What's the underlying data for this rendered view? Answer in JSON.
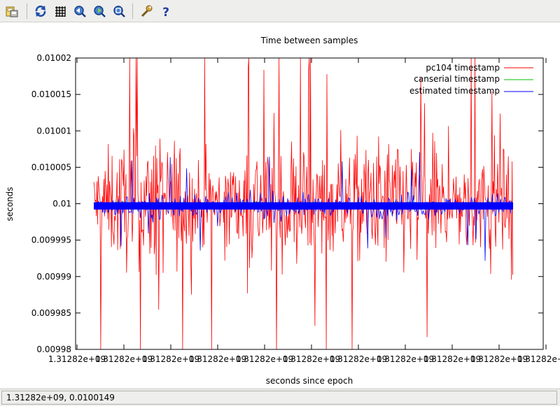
{
  "toolbar": {
    "buttons": [
      {
        "name": "export-icon",
        "tooltip": ""
      },
      {
        "name": "replot-icon",
        "tooltip": ""
      },
      {
        "name": "grid-icon",
        "tooltip": ""
      },
      {
        "name": "zoom-previous-icon",
        "tooltip": ""
      },
      {
        "name": "zoom-next-icon",
        "tooltip": ""
      },
      {
        "name": "autoscale-icon",
        "tooltip": ""
      },
      {
        "name": "config-icon",
        "tooltip": ""
      },
      {
        "name": "help-icon",
        "tooltip": ""
      }
    ]
  },
  "status": {
    "coordinates": "1.31282e+09,  0.0100149"
  },
  "colors": {
    "pc104": "#ff0000",
    "canserial": "#00c000",
    "estimated": "#0000ff"
  },
  "chart_data": {
    "type": "line",
    "title": "Time between samples",
    "xlabel": "seconds since epoch",
    "ylabel": "seconds",
    "ylim": [
      0.00998,
      0.01002
    ],
    "yticks": [
      0.00998,
      0.009985,
      0.00999,
      0.009995,
      0.01,
      0.010005,
      0.01001,
      0.010015,
      0.01002
    ],
    "ytick_labels": [
      "0.00998",
      "0.009985",
      "0.00999",
      "0.009995",
      "0.01",
      "0.010005",
      "0.01001",
      "0.010015",
      "0.01002"
    ],
    "xtick_labels": [
      "1.31282e+09",
      "1.31282e+09",
      "1.31282e+09",
      "1.31282e+09",
      "1.31282e+09",
      "1.31282e+09",
      "1.31282e+09",
      "1.31282e+09",
      "1.31282e+09",
      "1.31282e+09",
      "1.31282e+09"
    ],
    "grid": false,
    "legend_position": "top-right",
    "series": [
      {
        "name": "pc104 timestamp",
        "color": "#ff0000",
        "typical_range": [
          0.009985,
          0.01002
        ],
        "mean": 0.01
      },
      {
        "name": "canserial timestamp",
        "color": "#00c000",
        "typical_range": [
          0.0099995,
          0.0100005
        ],
        "mean": 0.01
      },
      {
        "name": "estimated timestamp",
        "color": "#0000ff",
        "typical_range": [
          0.009993,
          0.0100002
        ],
        "mean": 0.0099997
      }
    ]
  }
}
